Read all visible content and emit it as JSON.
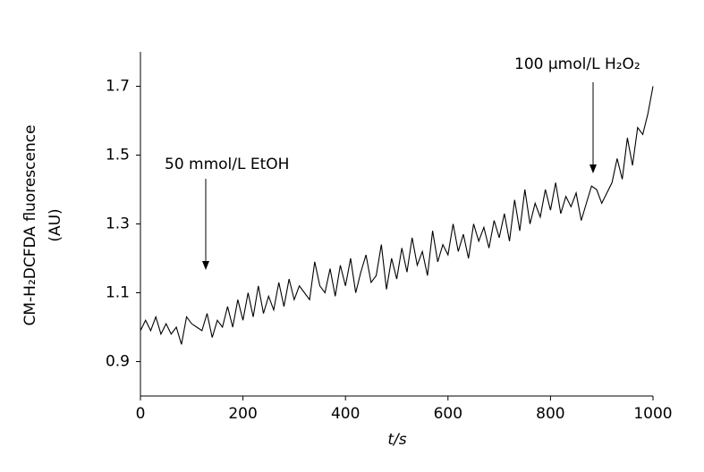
{
  "chart_data": {
    "type": "line",
    "xlabel": "t/s",
    "ylabel": [
      "CM-H₂DCFDA fluorescence",
      "(AU)"
    ],
    "annotations": [
      "50 mmol/L EtOH",
      "100 μmol/L H₂O₂"
    ],
    "x": [
      0,
      10,
      20,
      30,
      40,
      50,
      60,
      70,
      80,
      90,
      100,
      110,
      120,
      130,
      140,
      150,
      160,
      170,
      180,
      190,
      200,
      210,
      220,
      230,
      240,
      250,
      260,
      270,
      280,
      290,
      300,
      310,
      320,
      330,
      340,
      350,
      360,
      370,
      380,
      390,
      400,
      410,
      420,
      430,
      440,
      450,
      460,
      470,
      480,
      490,
      500,
      510,
      520,
      530,
      540,
      550,
      560,
      570,
      580,
      590,
      600,
      610,
      620,
      630,
      640,
      650,
      660,
      670,
      680,
      690,
      700,
      710,
      720,
      730,
      740,
      750,
      760,
      770,
      780,
      790,
      800,
      810,
      820,
      830,
      840,
      850,
      860,
      870,
      880,
      890,
      900,
      910,
      920,
      930,
      940,
      950,
      960,
      970,
      980,
      990,
      1000
    ],
    "series": [
      {
        "color": "#000000",
        "values": [
          0.99,
          1.02,
          0.99,
          1.03,
          0.98,
          1.01,
          0.98,
          1.0,
          0.95,
          1.03,
          1.01,
          1.0,
          0.99,
          1.04,
          0.97,
          1.02,
          1.0,
          1.06,
          1.0,
          1.08,
          1.02,
          1.1,
          1.03,
          1.12,
          1.04,
          1.09,
          1.05,
          1.13,
          1.06,
          1.14,
          1.08,
          1.12,
          1.1,
          1.08,
          1.19,
          1.12,
          1.1,
          1.17,
          1.09,
          1.18,
          1.12,
          1.2,
          1.1,
          1.16,
          1.21,
          1.13,
          1.15,
          1.24,
          1.11,
          1.2,
          1.14,
          1.23,
          1.16,
          1.26,
          1.18,
          1.22,
          1.15,
          1.28,
          1.19,
          1.24,
          1.21,
          1.3,
          1.22,
          1.27,
          1.2,
          1.3,
          1.25,
          1.29,
          1.23,
          1.31,
          1.26,
          1.33,
          1.25,
          1.37,
          1.28,
          1.4,
          1.3,
          1.36,
          1.32,
          1.4,
          1.34,
          1.42,
          1.33,
          1.38,
          1.35,
          1.39,
          1.31,
          1.36,
          1.41,
          1.4,
          1.36,
          1.39,
          1.42,
          1.49,
          1.43,
          1.55,
          1.47,
          1.58,
          1.56,
          1.62,
          1.7
        ]
      }
    ],
    "xlim": [
      0,
      1000
    ],
    "xticks": [
      0,
      200,
      400,
      600,
      800,
      1000
    ],
    "ylim": [
      0.8,
      1.8
    ],
    "yticks": [
      0.9,
      1.1,
      1.3,
      1.5,
      1.7
    ],
    "grid": false
  }
}
